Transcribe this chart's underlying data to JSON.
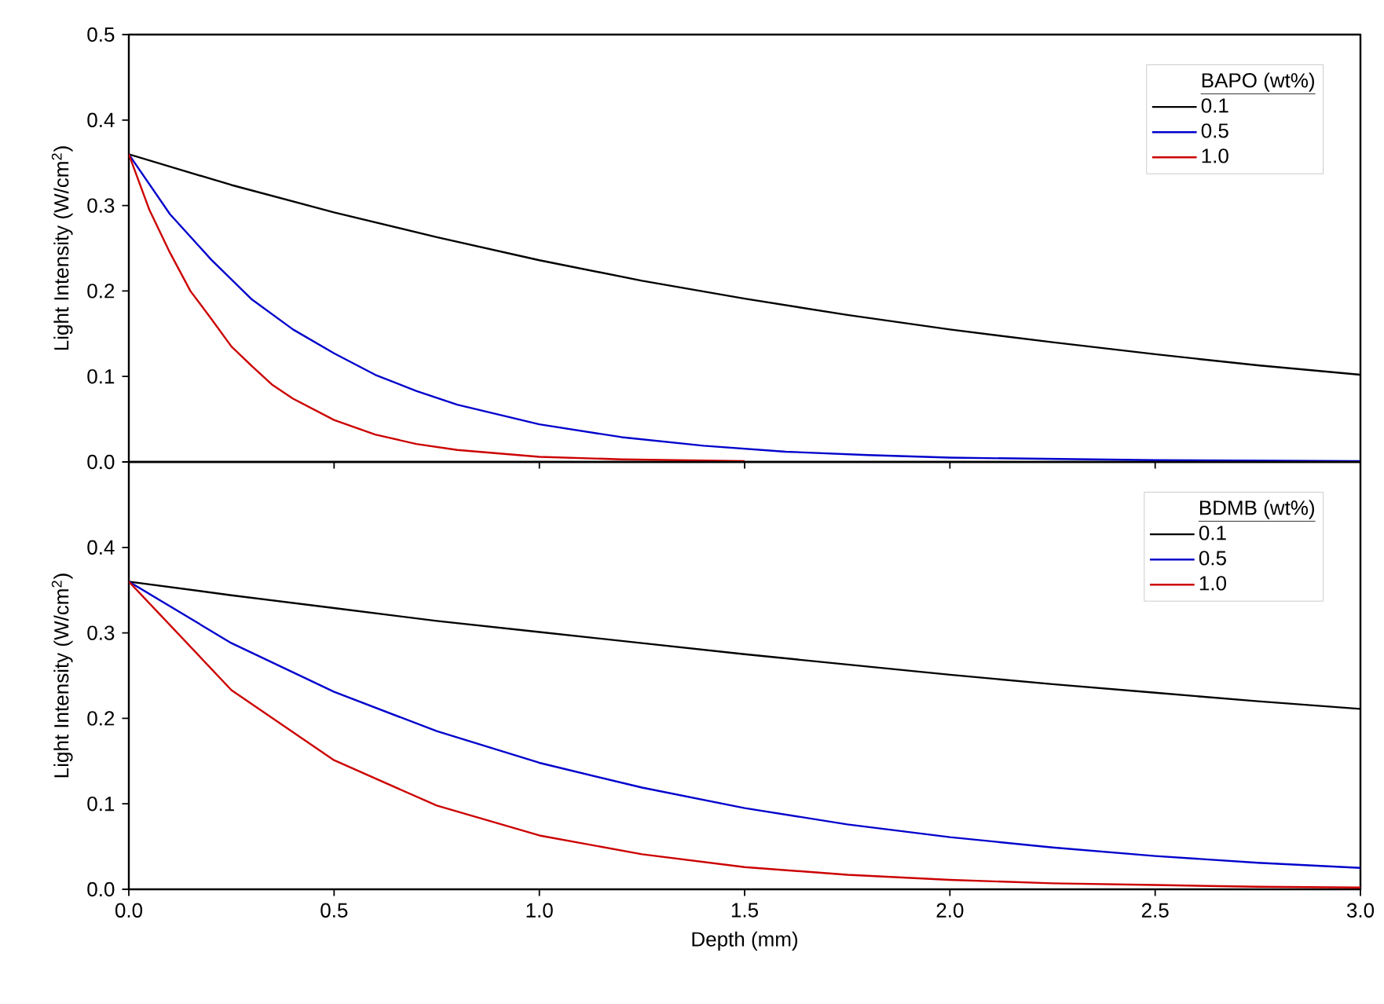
{
  "chart_data": [
    {
      "type": "line",
      "ylabel": "Light Intensity (W/cm$^{2}$)",
      "legend_title": "BAPO (wt%)",
      "legend": "top right",
      "tick_labels": "y",
      "xlim": [
        0,
        3
      ],
      "ylim": [
        0,
        0.5
      ],
      "xticks": [
        0,
        0.5,
        1,
        1.5,
        2,
        2.5,
        3
      ],
      "yticks": [
        {
          "value": 0,
          "label": "0.0"
        },
        0.1,
        0.2,
        0.3,
        0.4,
        0.5
      ],
      "series": [
        {
          "name": "0.1",
          "color": "#000000",
          "x": [
            0,
            0.25,
            0.5,
            0.75,
            1,
            1.25,
            1.5,
            1.75,
            2,
            2.25,
            2.5,
            2.75,
            3
          ],
          "values": [
            0.36,
            0.324,
            0.292,
            0.263,
            0.236,
            0.212,
            0.191,
            0.172,
            0.155,
            0.14,
            0.126,
            0.113,
            0.102
          ]
        },
        {
          "name": "0.5",
          "color": "#0000cc",
          "x": [
            0,
            0.1,
            0.2,
            0.3,
            0.4,
            0.5,
            0.6,
            0.7,
            0.8,
            1,
            1.2,
            1.4,
            1.6,
            1.8,
            2,
            2.5,
            3
          ],
          "values": [
            0.36,
            0.29,
            0.237,
            0.19,
            0.155,
            0.127,
            0.102,
            0.083,
            0.067,
            0.044,
            0.029,
            0.019,
            0.012,
            0.008,
            0.005,
            0.002,
            0.001
          ]
        },
        {
          "name": "1.0",
          "color": "#cc0000",
          "x": [
            0,
            0.05,
            0.1,
            0.15,
            0.2,
            0.25,
            0.3,
            0.35,
            0.4,
            0.5,
            0.6,
            0.7,
            0.8,
            1,
            1.2,
            1.5
          ],
          "values": [
            0.36,
            0.295,
            0.245,
            0.2,
            0.168,
            0.135,
            0.112,
            0.09,
            0.074,
            0.049,
            0.032,
            0.021,
            0.014,
            0.006,
            0.003,
            0.001
          ]
        }
      ]
    },
    {
      "type": "line",
      "xlabel": "Depth (mm)",
      "ylabel": "Light Intensity (W/cm$^{2}$)",
      "legend_title": "BDMB (wt%)",
      "legend": "top right",
      "xlim": [
        0,
        3
      ],
      "ylim": [
        0,
        0.5
      ],
      "xticks": [
        {
          "value": 0,
          "label": "0.0"
        },
        0.5,
        {
          "value": 1,
          "label": "1.0"
        },
        1.5,
        {
          "value": 2,
          "label": "2.0"
        },
        2.5,
        {
          "value": 3,
          "label": "3.0"
        }
      ],
      "yticks": [
        {
          "value": 0,
          "label": "0.0"
        },
        0.1,
        0.2,
        0.3,
        0.4
      ],
      "series": [
        {
          "name": "0.1",
          "color": "#000000",
          "x": [
            0,
            0.25,
            0.5,
            0.75,
            1,
            1.25,
            1.5,
            1.75,
            2,
            2.25,
            2.5,
            2.75,
            3
          ],
          "values": [
            0.36,
            0.344,
            0.329,
            0.314,
            0.301,
            0.288,
            0.275,
            0.263,
            0.251,
            0.24,
            0.23,
            0.22,
            0.211
          ]
        },
        {
          "name": "0.5",
          "color": "#0000cc",
          "x": [
            0,
            0.25,
            0.5,
            0.75,
            1,
            1.25,
            1.5,
            1.75,
            2,
            2.25,
            2.5,
            2.75,
            3
          ],
          "values": [
            0.36,
            0.288,
            0.231,
            0.185,
            0.148,
            0.119,
            0.095,
            0.076,
            0.061,
            0.049,
            0.039,
            0.031,
            0.025
          ]
        },
        {
          "name": "1.0",
          "color": "#cc0000",
          "x": [
            0,
            0.25,
            0.5,
            0.75,
            1,
            1.25,
            1.5,
            1.75,
            2,
            2.25,
            2.5,
            2.75,
            3
          ],
          "values": [
            0.36,
            0.233,
            0.151,
            0.098,
            0.063,
            0.041,
            0.026,
            0.017,
            0.011,
            0.007,
            0.005,
            0.003,
            0.002
          ]
        }
      ]
    }
  ]
}
